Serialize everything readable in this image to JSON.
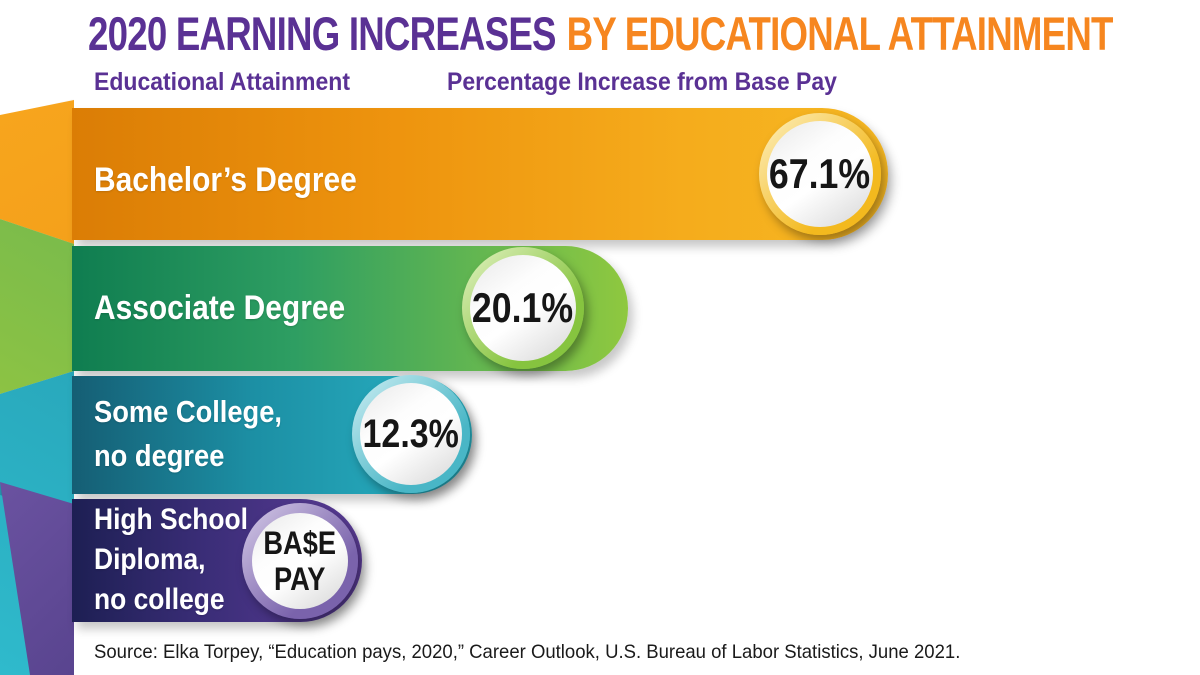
{
  "title": {
    "part1": "2020 EARNING INCREASES",
    "part2": "BY EDUCATIONAL ATTAINMENT"
  },
  "headers": {
    "attainment": "Educational Attainment",
    "percentage": "Percentage Increase from Base Pay"
  },
  "chart_data": {
    "type": "bar",
    "orientation": "horizontal",
    "title": "2020 Earning Increases by Educational Attainment",
    "categories": [
      "Bachelor’s Degree",
      "Associate Degree",
      "Some College, no degree",
      "High School Diploma, no college"
    ],
    "values_percent_increase_from_base_pay": [
      67.1,
      20.1,
      12.3,
      0
    ],
    "value_labels": [
      "67.1%",
      "20.1%",
      "12.3%",
      "BA$E PAY"
    ],
    "baseline_note": "High School Diploma, no college = base pay (0% increase)",
    "bar_colors": [
      "#F0940E",
      "#4FA85C",
      "#1F9FB5",
      "#45307E"
    ],
    "accent_colors": {
      "title_purple": "#5A3194",
      "title_orange": "#F6861F"
    },
    "legend": "none",
    "grid": false
  },
  "bars": [
    {
      "lines": [
        "Bachelor’s Degree"
      ],
      "value_lines": [
        "67.1%"
      ]
    },
    {
      "lines": [
        "Associate Degree"
      ],
      "value_lines": [
        "20.1%"
      ]
    },
    {
      "lines": [
        "Some College,",
        "no degree"
      ],
      "value_lines": [
        "12.3%"
      ]
    },
    {
      "lines": [
        "High School",
        "Diploma,",
        "no college"
      ],
      "value_lines": [
        "BA$E",
        "PAY"
      ]
    }
  ],
  "source": "Source: Elka Torpey, “Education pays, 2020,” Career Outlook, U.S. Bureau of Labor Statistics, June 2021."
}
